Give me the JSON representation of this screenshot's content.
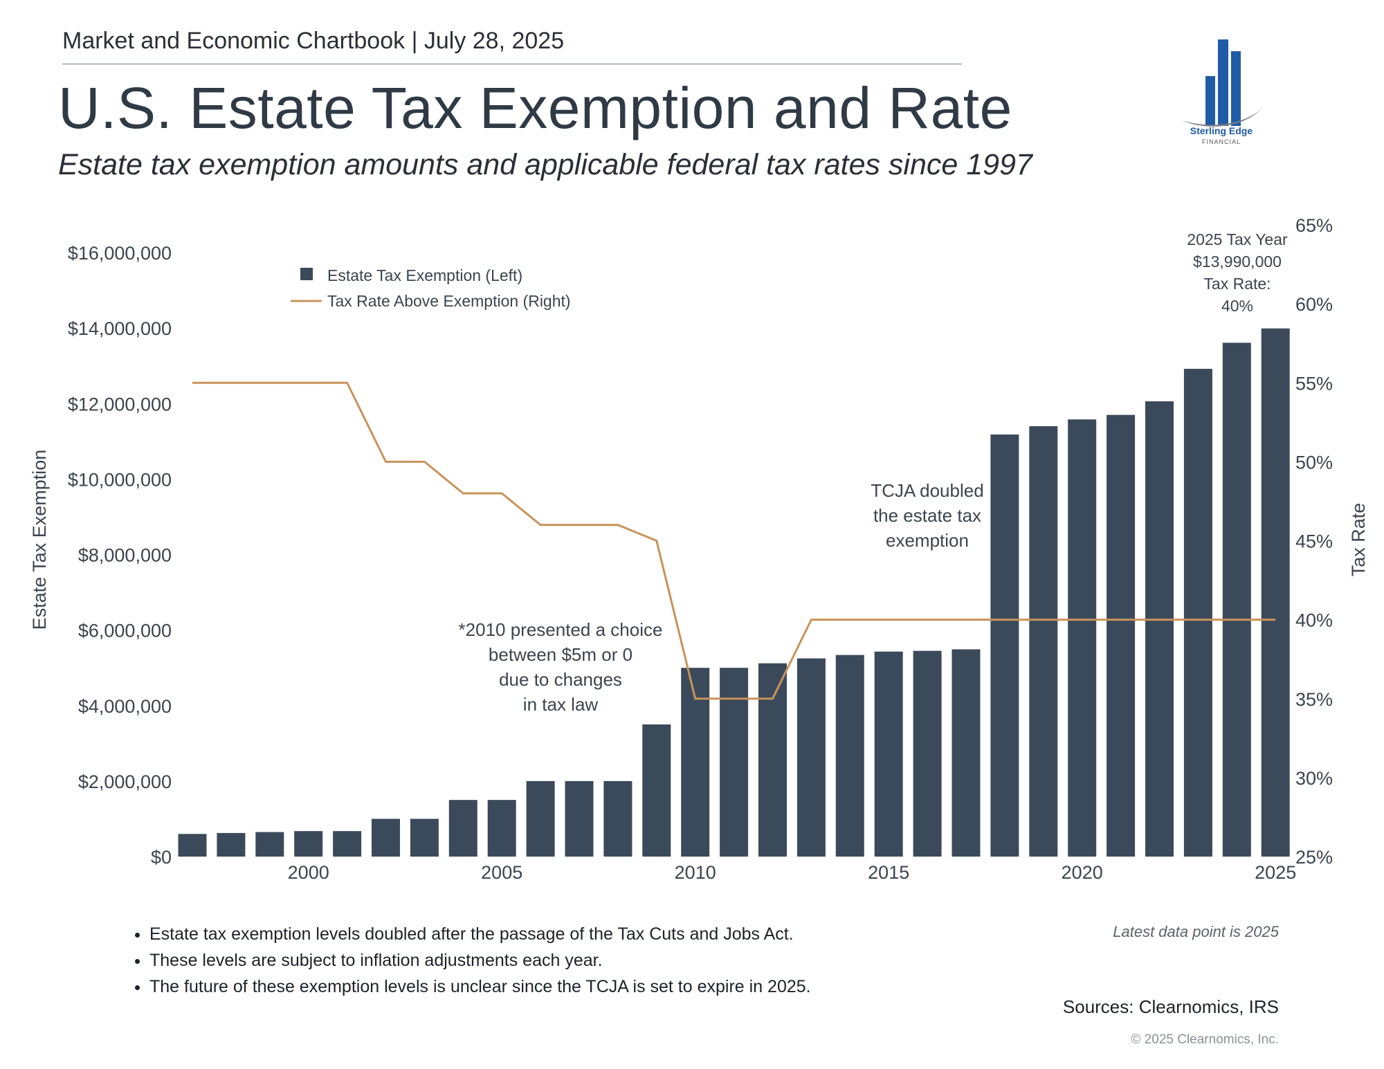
{
  "header": {
    "chartbook": "Market and Economic Chartbook | July 28, 2025"
  },
  "title": "U.S. Estate Tax Exemption and Rate",
  "subtitle": "Estate tax exemption amounts and applicable federal tax rates since 1997",
  "logo": {
    "name": "Sterling Edge",
    "sub": "FINANCIAL"
  },
  "colors": {
    "bar": "#3b4a5a",
    "line": "#c8935a",
    "text": "#3b444e"
  },
  "chart_data": {
    "type": "bar",
    "title": "U.S. Estate Tax Exemption and Rate",
    "ylabel": "Estate Tax Exemption",
    "y2label": "Tax Rate",
    "ylim": [
      0,
      16000000
    ],
    "y2lim": [
      25,
      65
    ],
    "yticks": [
      "$0",
      "$2,000,000",
      "$4,000,000",
      "$6,000,000",
      "$8,000,000",
      "$10,000,000",
      "$12,000,000",
      "$14,000,000",
      "$16,000,000"
    ],
    "y2ticks": [
      "25%",
      "30%",
      "35%",
      "40%",
      "45%",
      "50%",
      "55%",
      "60%",
      "65%"
    ],
    "xticks": [
      "2000",
      "2005",
      "2010",
      "2015",
      "2020",
      "2025"
    ],
    "categories": [
      1997,
      1998,
      1999,
      2000,
      2001,
      2002,
      2003,
      2004,
      2005,
      2006,
      2007,
      2008,
      2009,
      2010,
      2011,
      2012,
      2013,
      2014,
      2015,
      2016,
      2017,
      2018,
      2019,
      2020,
      2021,
      2022,
      2023,
      2024,
      2025
    ],
    "series": [
      {
        "name": "Estate Tax Exemption (Left)",
        "type": "bar",
        "axis": "left",
        "values": [
          600000,
          625000,
          650000,
          675000,
          675000,
          1000000,
          1000000,
          1500000,
          1500000,
          2000000,
          2000000,
          2000000,
          3500000,
          5000000,
          5000000,
          5120000,
          5250000,
          5340000,
          5430000,
          5450000,
          5490000,
          11180000,
          11400000,
          11580000,
          11700000,
          12060000,
          12920000,
          13610000,
          13990000
        ]
      },
      {
        "name": "Tax Rate Above Exemption (Right)",
        "type": "line",
        "axis": "right",
        "values": [
          55,
          55,
          55,
          55,
          55,
          50,
          50,
          48,
          48,
          46,
          46,
          46,
          45,
          35,
          35,
          35,
          40,
          40,
          40,
          40,
          40,
          40,
          40,
          40,
          40,
          40,
          40,
          40,
          40
        ]
      }
    ],
    "legend_position": "top-left",
    "annotations": {
      "tcja": [
        "TCJA doubled",
        "the estate tax",
        "exemption"
      ],
      "y2010": [
        "*2010 presented a choice",
        "between $5m or 0",
        "due to changes",
        "in tax law"
      ],
      "latest": [
        "2025 Tax Year",
        "$13,990,000",
        "Tax Rate:",
        "40%"
      ]
    }
  },
  "notes": [
    "Estate tax exemption levels doubled after the passage of the Tax Cuts and Jobs Act.",
    "These levels are subject to inflation adjustments each year.",
    "The future of these exemption levels is unclear since the TCJA is set to expire in 2025."
  ],
  "footer": {
    "latest": "Latest data point is 2025",
    "sources": "Sources: Clearnomics, IRS",
    "copyright": "© 2025 Clearnomics, Inc."
  }
}
